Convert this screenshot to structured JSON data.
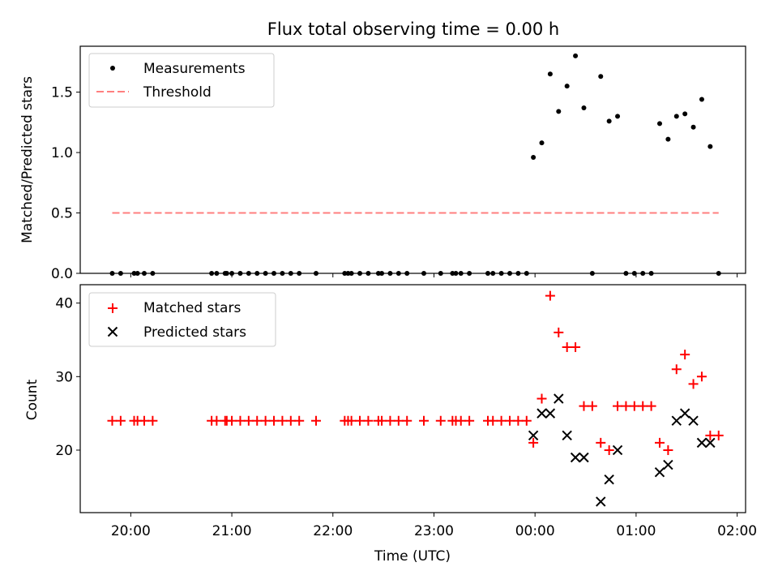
{
  "figure": {
    "title": "Flux total observing time = 0.00 h",
    "xlabel": "Time (UTC)"
  },
  "colors": {
    "measurement": "#000000",
    "threshold": "#ff7f7f",
    "matched": "#ff0000",
    "predicted": "#000000"
  },
  "chart_data": [
    {
      "type": "scatter",
      "panel": "top",
      "ylabel": "Matched/Predicted stars",
      "xlim": [
        "19:30",
        "02:05"
      ],
      "ylim": [
        0,
        1.88
      ],
      "yticks": [
        0.0,
        0.5,
        1.0,
        1.5
      ],
      "ytick_labels": [
        "0.0",
        "0.5",
        "1.0",
        "1.5"
      ],
      "legend_position": "top-left",
      "series": [
        {
          "name": "Measurements",
          "marker": "dot",
          "x": [
            "19:49",
            "19:54",
            "20:02",
            "20:04",
            "20:08",
            "20:13",
            "20:48",
            "20:51",
            "20:56",
            "20:57",
            "21:00",
            "21:05",
            "21:10",
            "21:15",
            "21:20",
            "21:25",
            "21:30",
            "21:35",
            "21:40",
            "21:50",
            "22:07",
            "22:09",
            "22:11",
            "22:16",
            "22:21",
            "22:27",
            "22:29",
            "22:34",
            "22:39",
            "22:44",
            "22:54",
            "23:04",
            "23:11",
            "23:13",
            "23:16",
            "23:21",
            "23:32",
            "23:35",
            "23:40",
            "23:45",
            "23:50",
            "23:55",
            "23:59",
            "00:04",
            "00:09",
            "00:14",
            "00:19",
            "00:24",
            "00:29",
            "00:34",
            "00:39",
            "00:44",
            "00:49",
            "00:54",
            "00:59",
            "01:04",
            "01:09",
            "01:14",
            "01:19",
            "01:24",
            "01:29",
            "01:34",
            "01:39",
            "01:44",
            "01:49"
          ],
          "y": [
            0,
            0,
            0,
            0,
            0,
            0,
            0,
            0,
            0,
            0,
            0,
            0,
            0,
            0,
            0,
            0,
            0,
            0,
            0,
            0,
            0,
            0,
            0,
            0,
            0,
            0,
            0,
            0,
            0,
            0,
            0,
            0,
            0,
            0,
            0,
            0,
            0,
            0,
            0,
            0,
            0,
            0,
            0.96,
            1.08,
            1.65,
            1.34,
            1.55,
            1.8,
            1.37,
            0,
            1.63,
            1.26,
            1.3,
            0,
            0,
            0,
            0,
            1.24,
            1.11,
            1.3,
            1.32,
            1.21,
            1.44,
            1.05,
            0
          ]
        },
        {
          "name": "Threshold",
          "style": "dashed",
          "x": [
            "19:49",
            "01:49"
          ],
          "y": [
            0.5,
            0.5
          ]
        }
      ]
    },
    {
      "type": "scatter",
      "panel": "bottom",
      "ylabel": "Count",
      "xlim": [
        "19:30",
        "02:05"
      ],
      "ylim": [
        11.5,
        42.5
      ],
      "yticks": [
        20,
        30,
        40
      ],
      "ytick_labels": [
        "20",
        "30",
        "40"
      ],
      "xticks": [
        "20:00",
        "21:00",
        "22:00",
        "23:00",
        "00:00",
        "01:00",
        "02:00"
      ],
      "xtick_labels": [
        "20:00",
        "21:00",
        "22:00",
        "23:00",
        "00:00",
        "01:00",
        "02:00"
      ],
      "legend_position": "top-left",
      "series": [
        {
          "name": "Matched stars",
          "marker": "plus",
          "x": [
            "19:49",
            "19:54",
            "20:02",
            "20:04",
            "20:08",
            "20:13",
            "20:48",
            "20:51",
            "20:56",
            "20:57",
            "21:00",
            "21:05",
            "21:10",
            "21:15",
            "21:20",
            "21:25",
            "21:30",
            "21:35",
            "21:40",
            "21:50",
            "22:07",
            "22:09",
            "22:11",
            "22:16",
            "22:21",
            "22:27",
            "22:29",
            "22:34",
            "22:39",
            "22:44",
            "22:54",
            "23:04",
            "23:11",
            "23:13",
            "23:16",
            "23:21",
            "23:32",
            "23:35",
            "23:40",
            "23:45",
            "23:50",
            "23:55",
            "23:59",
            "00:04",
            "00:09",
            "00:14",
            "00:19",
            "00:24",
            "00:29",
            "00:34",
            "00:39",
            "00:44",
            "00:49",
            "00:54",
            "00:59",
            "01:04",
            "01:09",
            "01:14",
            "01:19",
            "01:24",
            "01:29",
            "01:34",
            "01:39",
            "01:44",
            "01:49"
          ],
          "y": [
            24,
            24,
            24,
            24,
            24,
            24,
            24,
            24,
            24,
            24,
            24,
            24,
            24,
            24,
            24,
            24,
            24,
            24,
            24,
            24,
            24,
            24,
            24,
            24,
            24,
            24,
            24,
            24,
            24,
            24,
            24,
            24,
            24,
            24,
            24,
            24,
            24,
            24,
            24,
            24,
            24,
            24,
            21,
            27,
            41,
            36,
            34,
            34,
            26,
            26,
            21,
            20,
            26,
            26,
            26,
            26,
            26,
            21,
            20,
            31,
            33,
            29,
            30,
            22,
            22
          ]
        },
        {
          "name": "Predicted stars",
          "marker": "x",
          "x": [
            "23:59",
            "00:04",
            "00:09",
            "00:14",
            "00:19",
            "00:24",
            "00:29",
            "00:39",
            "00:44",
            "00:49",
            "01:14",
            "01:19",
            "01:24",
            "01:29",
            "01:34",
            "01:39",
            "01:44"
          ],
          "y": [
            22,
            25,
            25,
            27,
            22,
            19,
            19,
            13,
            16,
            20,
            17,
            18,
            24,
            25,
            24,
            21,
            21
          ]
        }
      ]
    }
  ]
}
